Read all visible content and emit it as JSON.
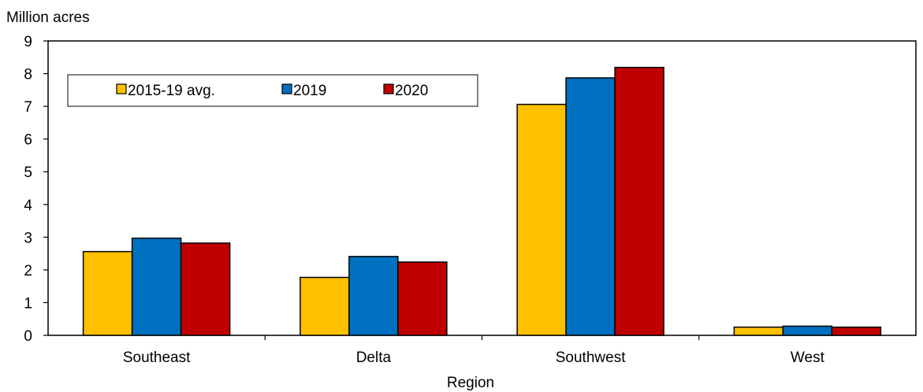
{
  "chart_data": {
    "type": "bar",
    "title": "",
    "ylabel": "Million acres",
    "xlabel": "Region",
    "categories": [
      "Southeast",
      "Delta",
      "Southwest",
      "West"
    ],
    "ylim": [
      0,
      9
    ],
    "yticks": [
      0,
      1,
      2,
      3,
      4,
      5,
      6,
      7,
      8,
      9
    ],
    "grid": false,
    "legend_position": "top-left",
    "series": [
      {
        "name": "2015-19 avg.",
        "color": "#FFC000",
        "values": [
          2.56,
          1.77,
          7.06,
          0.25
        ]
      },
      {
        "name": "2019",
        "color": "#0070C0",
        "values": [
          2.97,
          2.41,
          7.87,
          0.28
        ]
      },
      {
        "name": "2020",
        "color": "#C00000",
        "values": [
          2.82,
          2.24,
          8.19,
          0.25
        ]
      }
    ]
  }
}
